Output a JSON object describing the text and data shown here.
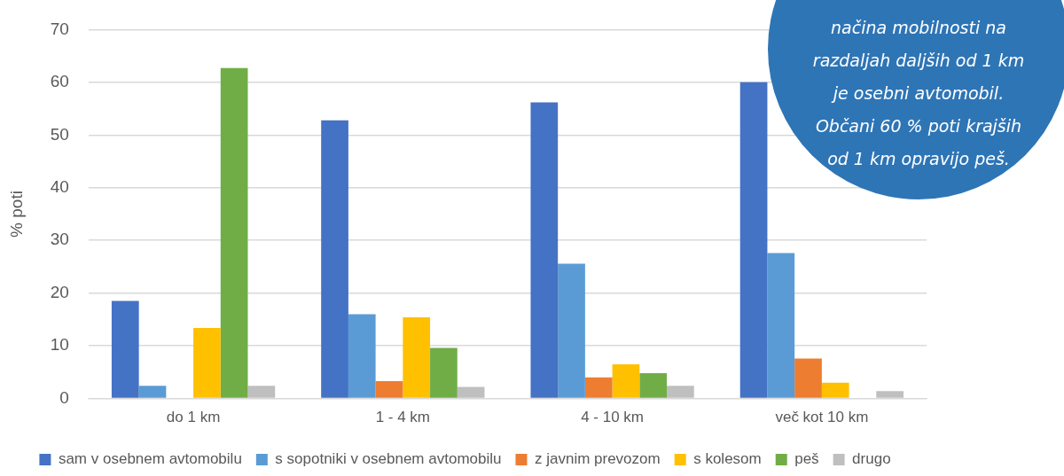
{
  "chart_data": {
    "type": "bar",
    "ylabel": "% poti",
    "categories": [
      "do 1 km",
      "1 - 4 km",
      "4 - 10 km",
      "več kot 10 km"
    ],
    "series": [
      {
        "name": "sam v osebnem avtomobilu",
        "color": "#4472c4",
        "values": [
          18.5,
          52.8,
          56.2,
          60
        ]
      },
      {
        "name": "s sopotniki v osebnem avtomobilu",
        "color": "#5b9bd5",
        "values": [
          2.4,
          16.0,
          25.6,
          27.6
        ]
      },
      {
        "name": "z javnim prevozom",
        "color": "#ed7d31",
        "values": [
          0,
          3.3,
          4.0,
          7.6
        ]
      },
      {
        "name": "s kolesom",
        "color": "#ffc000",
        "values": [
          13.4,
          15.4,
          6.5,
          3.0
        ]
      },
      {
        "name": "peš",
        "color": "#70ad47",
        "values": [
          62.7,
          9.6,
          4.8,
          0
        ]
      },
      {
        "name": "drugo",
        "color": "#bfbfbf",
        "values": [
          2.4,
          2.2,
          2.4,
          1.4
        ]
      }
    ],
    "ylim": [
      0,
      70
    ],
    "yticks": [
      0,
      10,
      20,
      30,
      40,
      50,
      60,
      70
    ],
    "grid": "y",
    "legend": "bottom",
    "annotations": [
      "načina mobilnosti na\nrazdaljah daljših od 1 km\nje osebni avtomobil.\nObčani 60 % poti krajših\nod 1 km opravijo peš."
    ]
  }
}
